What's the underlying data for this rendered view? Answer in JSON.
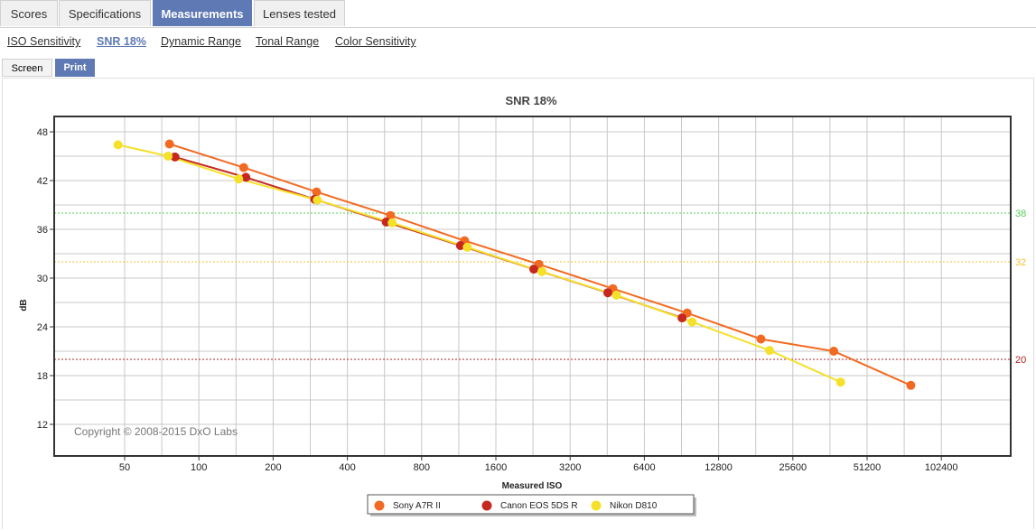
{
  "tabs": [
    {
      "label": "Scores",
      "active": false
    },
    {
      "label": "Specifications",
      "active": false
    },
    {
      "label": "Measurements",
      "active": true
    },
    {
      "label": "Lenses tested",
      "active": false
    }
  ],
  "subnav": [
    {
      "label": "ISO Sensitivity",
      "active": false
    },
    {
      "label": "SNR 18%",
      "active": true
    },
    {
      "label": "Dynamic Range",
      "active": false
    },
    {
      "label": "Tonal Range",
      "active": false
    },
    {
      "label": "Color Sensitivity",
      "active": false
    }
  ],
  "view_buttons": {
    "screen": "Screen",
    "print": "Print"
  },
  "copyright": "Copyright © 2008-2015 DxO Labs",
  "chart_data": {
    "type": "line",
    "title": "SNR 18%",
    "xlabel": "Measured ISO",
    "ylabel": "dB",
    "x_scale": "log2",
    "x_ticks": [
      50,
      100,
      200,
      400,
      800,
      1600,
      3200,
      6400,
      12800,
      25600,
      51200,
      102400
    ],
    "y_ticks": [
      12,
      18,
      24,
      30,
      36,
      42,
      48
    ],
    "ylim": [
      8,
      50
    ],
    "grid": true,
    "legend_position": "bottom-center",
    "reference_lines": [
      {
        "label": "38",
        "value": 38,
        "color": "#55d055"
      },
      {
        "label": "32",
        "value": 32,
        "color": "#f2c230"
      },
      {
        "label": "20",
        "value": 20,
        "color": "#b22222"
      }
    ],
    "series": [
      {
        "name": "Sony A7R II",
        "color": "#f26a21",
        "x": [
          76,
          152,
          300,
          598,
          1195,
          2390,
          4770,
          9540,
          19000,
          37500,
          77000
        ],
        "y": [
          46.5,
          43.6,
          40.6,
          37.7,
          34.6,
          31.7,
          28.7,
          25.7,
          22.5,
          21.0,
          16.8
        ]
      },
      {
        "name": "Canon EOS 5DS R",
        "color": "#c62820",
        "x": [
          80,
          155,
          295,
          575,
          1150,
          2280,
          4550,
          9100
        ],
        "y": [
          44.9,
          42.4,
          39.7,
          36.9,
          34.0,
          31.1,
          28.2,
          25.1
        ]
      },
      {
        "name": "Nikon D810",
        "color": "#f5e02a",
        "x": [
          47,
          75,
          145,
          302,
          608,
          1225,
          2460,
          4930,
          10000,
          20600,
          40000
        ],
        "y": [
          46.4,
          45.0,
          42.2,
          39.6,
          36.8,
          33.8,
          30.8,
          27.9,
          24.6,
          21.1,
          17.2
        ]
      }
    ]
  }
}
